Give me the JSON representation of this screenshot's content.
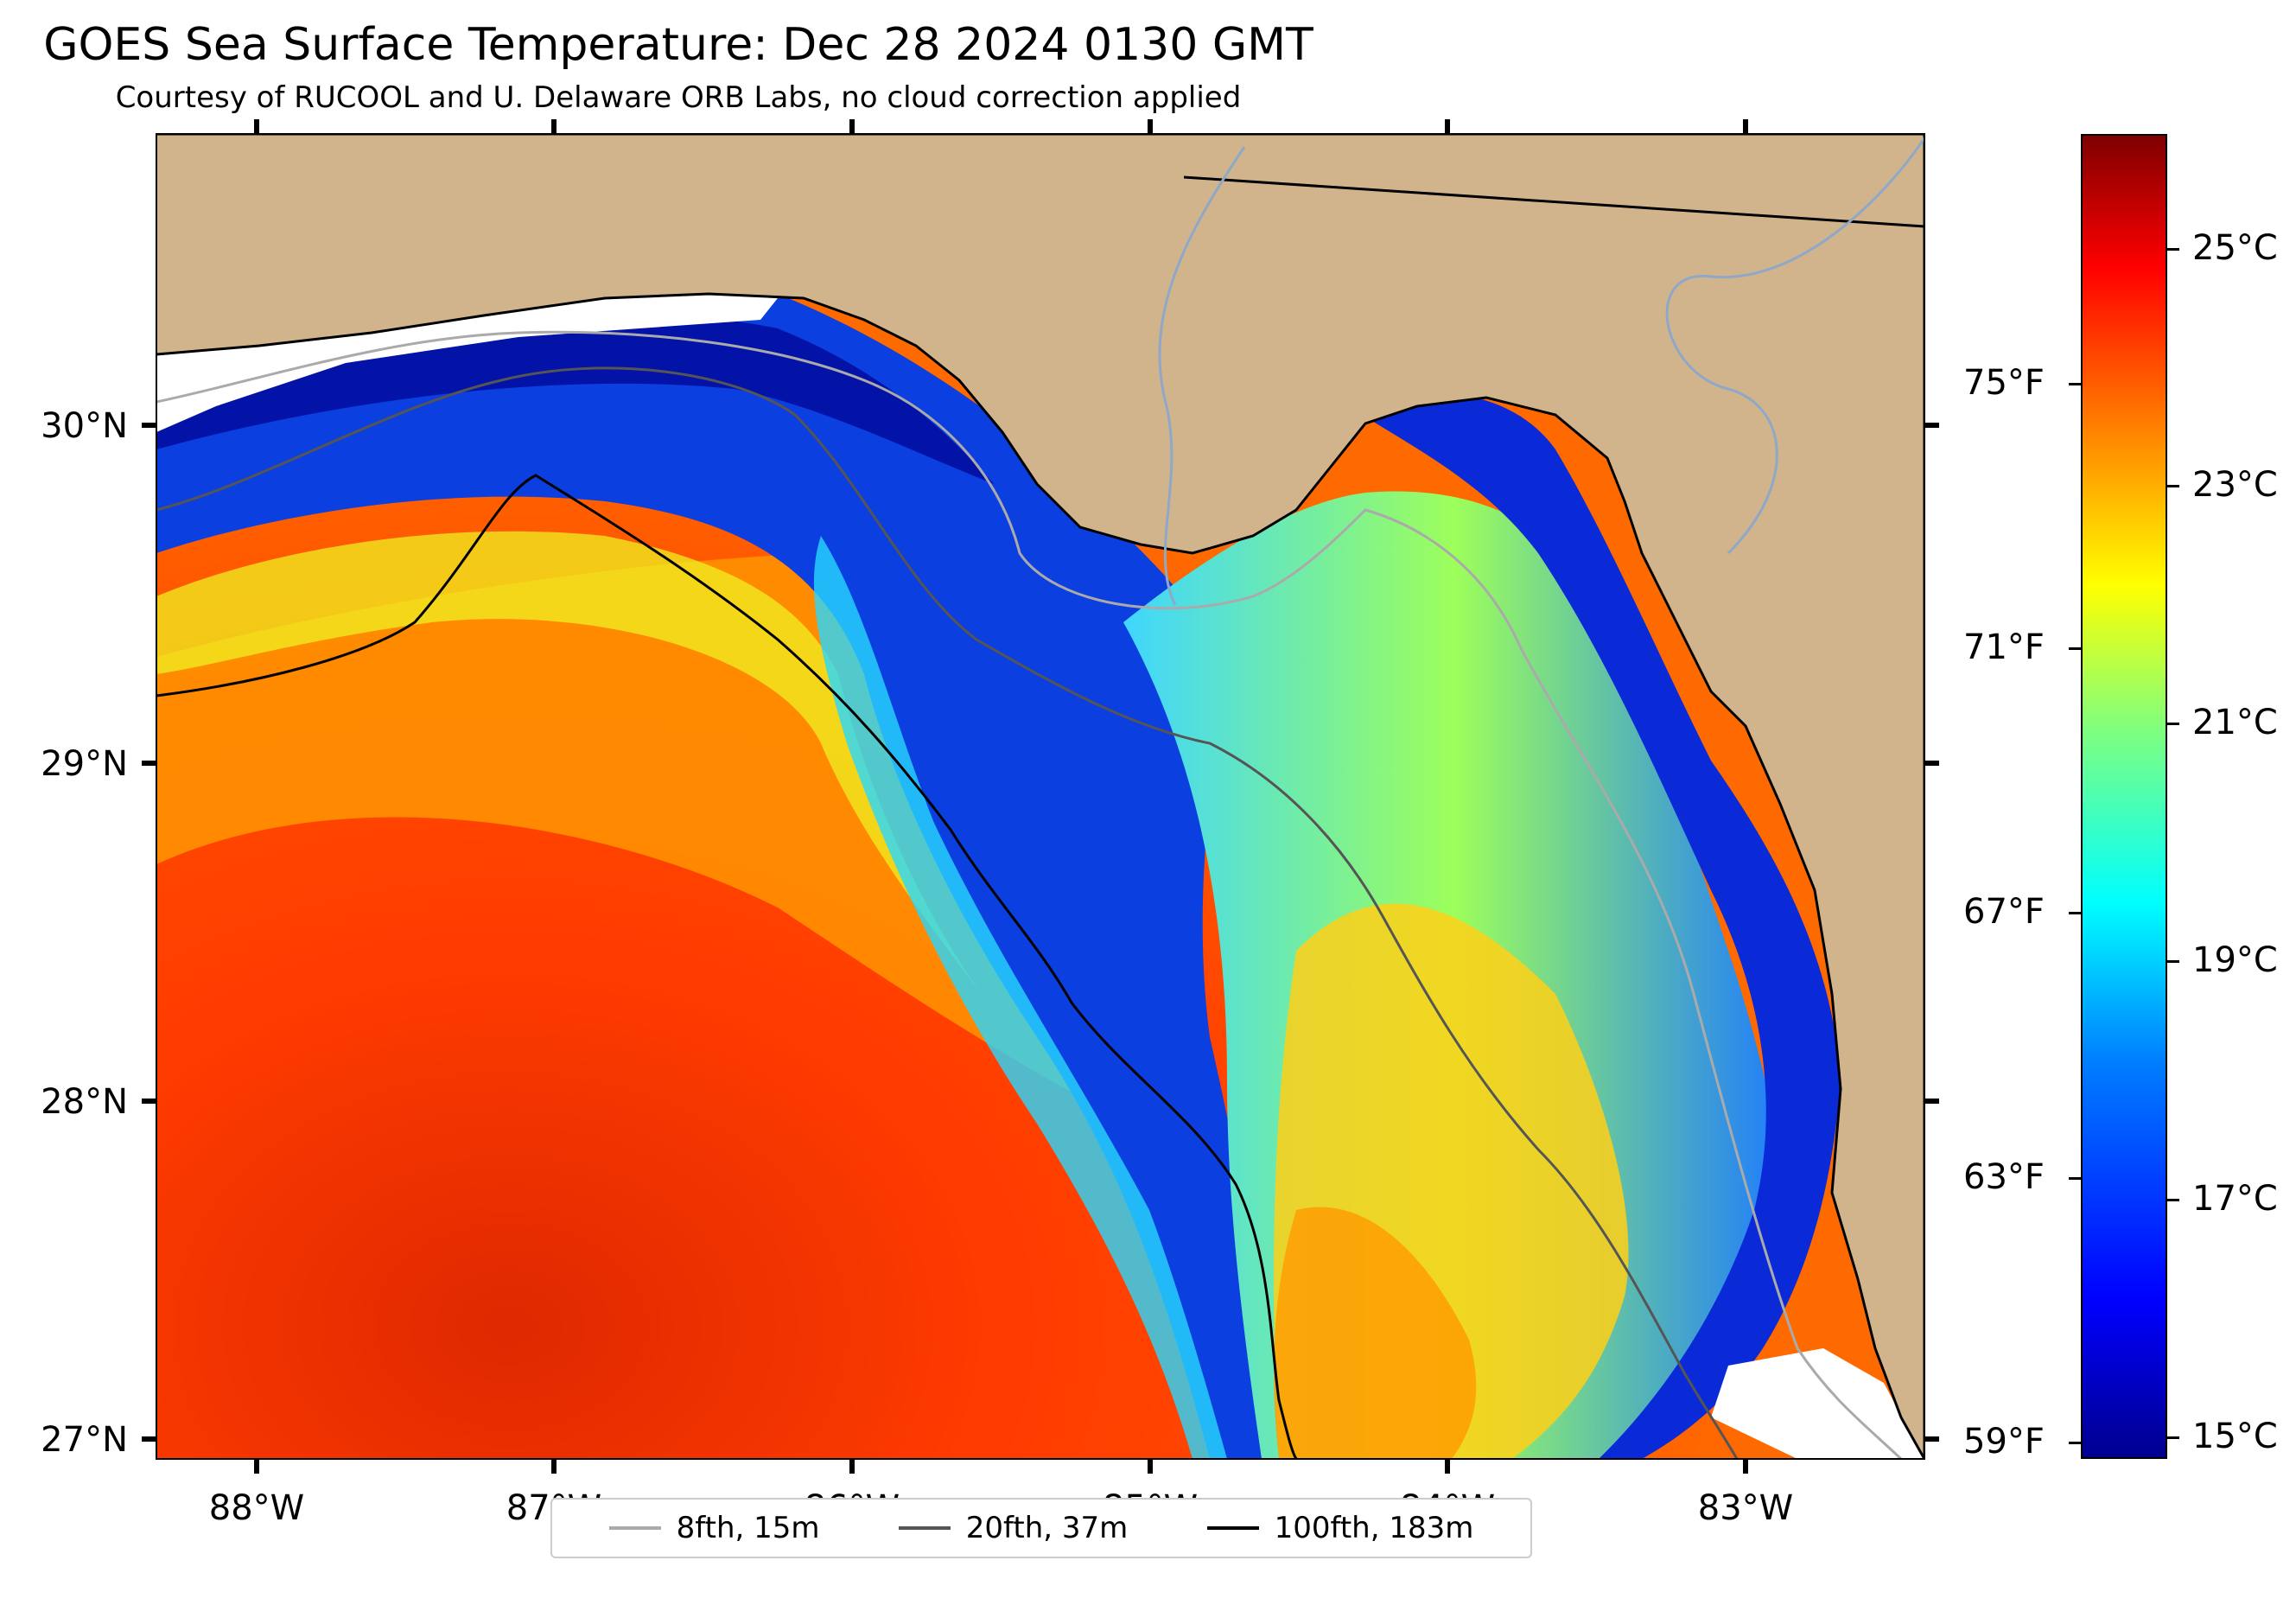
{
  "header": {
    "title": "GOES Sea Surface Temperature: Dec 28 2024 0130 GMT",
    "subtitle": "Courtesy of RUCOOL and U. Delaware ORB Labs, no cloud correction applied"
  },
  "map": {
    "lat_ticks": [
      "30°N",
      "29°N",
      "28°N",
      "27°N"
    ],
    "lon_ticks": [
      "88°W",
      "87°W",
      "86°W",
      "85°W",
      "84°W",
      "83°W"
    ],
    "lat_range": [
      26.94,
      30.86
    ],
    "lon_range": [
      -88.33,
      -82.4
    ],
    "land_color": "#d2b48c",
    "cloud_color": "#ffffff"
  },
  "legend": {
    "items": [
      {
        "label": "8fth, 15m",
        "color": "#aaaaaa"
      },
      {
        "label": "20fth, 37m",
        "color": "#555555"
      },
      {
        "label": "100fth, 183m",
        "color": "#000000"
      }
    ]
  },
  "colorbar": {
    "celsius_labels": [
      "25°C",
      "23°C",
      "21°C",
      "19°C",
      "17°C",
      "15°C"
    ],
    "fahrenheit_labels": [
      "75°F",
      "71°F",
      "67°F",
      "63°F",
      "59°F"
    ],
    "colormap": "jet",
    "range_c": [
      14.8,
      26.2
    ]
  }
}
